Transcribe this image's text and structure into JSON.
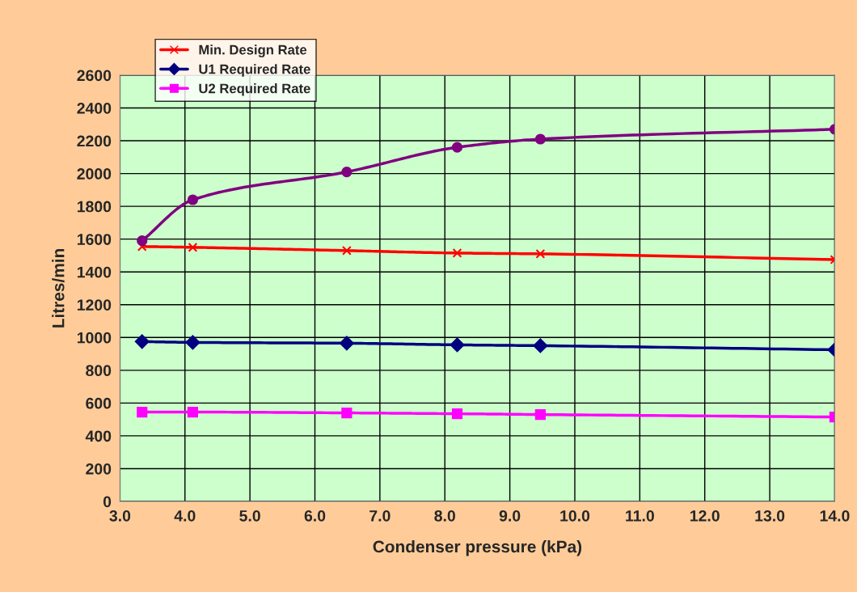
{
  "chart_data": {
    "type": "line",
    "xlabel": "Condenser pressure (kPa)",
    "ylabel": "Litres/min",
    "x": [
      3.34,
      4.12,
      6.49,
      8.19,
      9.47,
      14.0
    ],
    "series": [
      {
        "name": "Min. Design Rate",
        "color": "#ff0000",
        "marker": "cross",
        "values": [
          1555,
          1550,
          1530,
          1515,
          1510,
          1475
        ]
      },
      {
        "color": "#800080",
        "marker": "circle",
        "values": [
          1590,
          1840,
          2010,
          2160,
          2210,
          2270
        ]
      },
      {
        "name": "U1 Required Rate",
        "color": "#000080",
        "marker": "diamond",
        "values": [
          975,
          970,
          965,
          955,
          950,
          925
        ]
      },
      {
        "name": "U2 Required Rate",
        "color": "#ff00ff",
        "marker": "square",
        "values": [
          545,
          545,
          540,
          535,
          530,
          515
        ]
      }
    ],
    "xlim": [
      3.0,
      14.0
    ],
    "xticks": [
      {
        "value": 3,
        "label": "3.0"
      },
      {
        "value": 4,
        "label": "4.0"
      },
      {
        "value": 5,
        "label": "5.0"
      },
      {
        "value": 6,
        "label": "6.0"
      },
      {
        "value": 7,
        "label": "7.0"
      },
      {
        "value": 8,
        "label": "8.0"
      },
      {
        "value": 9,
        "label": "9.0"
      },
      {
        "value": 10,
        "label": "10.0"
      },
      {
        "value": 11,
        "label": "11.0"
      },
      {
        "value": 12,
        "label": "12.0"
      },
      {
        "value": 13,
        "label": "13.0"
      },
      {
        "value": 14,
        "label": "14.0"
      }
    ],
    "ylim": [
      0,
      2600
    ],
    "yticks": [
      0,
      200,
      400,
      600,
      800,
      1000,
      1200,
      1400,
      1600,
      1800,
      2000,
      2200,
      2400,
      2600
    ],
    "grid": true,
    "legend": "top left",
    "line_style": "solid"
  }
}
